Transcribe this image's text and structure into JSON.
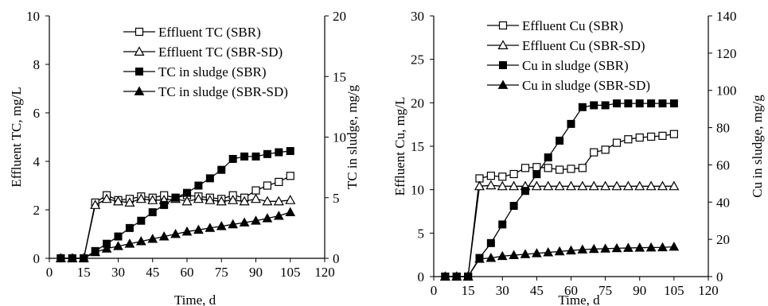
{
  "chart_data": [
    {
      "type": "line",
      "xlabel": "Time, d",
      "ylabel": "Effluent TC, mg/L",
      "y2label": "TC in sludge, mg/g",
      "xlim": [
        0,
        120
      ],
      "ylim": [
        0,
        10
      ],
      "y2lim": [
        0,
        20
      ],
      "xticks": [
        0,
        15,
        30,
        45,
        60,
        75,
        90,
        105,
        120
      ],
      "yticks": [
        0,
        2,
        4,
        6,
        8,
        10
      ],
      "y2ticks": [
        0,
        5,
        10,
        15,
        20
      ],
      "grid": false,
      "legend_position": "top-right",
      "series": [
        {
          "name": "Effluent TC (SBR)",
          "axis": "left",
          "marker": "open-square",
          "x": [
            5,
            10,
            15,
            20,
            25,
            30,
            35,
            40,
            45,
            50,
            55,
            60,
            65,
            70,
            75,
            80,
            85,
            90,
            95,
            100,
            105
          ],
          "y": [
            0,
            0,
            0,
            2.3,
            2.6,
            2.4,
            2.45,
            2.55,
            2.5,
            2.6,
            2.5,
            2.6,
            2.55,
            2.5,
            2.45,
            2.6,
            2.5,
            2.8,
            3.0,
            3.15,
            3.4
          ]
        },
        {
          "name": "Effluent TC (SBR-SD)",
          "axis": "left",
          "marker": "open-triangle",
          "x": [
            5,
            10,
            15,
            20,
            25,
            30,
            35,
            40,
            45,
            50,
            55,
            60,
            65,
            70,
            75,
            80,
            85,
            90,
            95,
            100,
            105
          ],
          "y": [
            0,
            0,
            0,
            2.2,
            2.45,
            2.35,
            2.3,
            2.45,
            2.4,
            2.4,
            2.45,
            2.35,
            2.45,
            2.4,
            2.35,
            2.4,
            2.35,
            2.45,
            2.35,
            2.35,
            2.4
          ]
        },
        {
          "name": "TC in sludge (SBR)",
          "axis": "right",
          "marker": "filled-square",
          "x": [
            5,
            10,
            15,
            20,
            25,
            30,
            35,
            40,
            45,
            50,
            55,
            60,
            65,
            70,
            75,
            80,
            85,
            90,
            95,
            100,
            105
          ],
          "y": [
            0,
            0,
            0,
            0.6,
            1.2,
            1.8,
            2.5,
            3.1,
            3.8,
            4.4,
            5.0,
            5.4,
            6.0,
            6.6,
            7.3,
            8.2,
            8.4,
            8.4,
            8.6,
            8.75,
            8.85
          ]
        },
        {
          "name": "TC in sludge (SBR-SD)",
          "axis": "right",
          "marker": "filled-triangle",
          "x": [
            5,
            10,
            15,
            20,
            25,
            30,
            35,
            40,
            45,
            50,
            55,
            60,
            65,
            70,
            75,
            80,
            85,
            90,
            95,
            100,
            105
          ],
          "y": [
            0,
            0,
            0,
            0.5,
            0.8,
            1.0,
            1.2,
            1.4,
            1.6,
            1.8,
            2.0,
            2.2,
            2.35,
            2.5,
            2.65,
            2.8,
            2.95,
            3.1,
            3.3,
            3.5,
            3.8
          ]
        }
      ]
    },
    {
      "type": "line",
      "xlabel": "Time, d",
      "ylabel": "Effluent Cu, mg/L",
      "y2label": "Cu in sludge, mg/g",
      "xlim": [
        0,
        120
      ],
      "ylim": [
        0,
        30
      ],
      "y2lim": [
        0,
        140
      ],
      "xticks": [
        0,
        15,
        30,
        45,
        60,
        75,
        90,
        105,
        120
      ],
      "yticks": [
        0,
        5,
        10,
        15,
        20,
        25,
        30
      ],
      "y2ticks": [
        0,
        20,
        40,
        60,
        80,
        100,
        120,
        140
      ],
      "grid": false,
      "legend_position": "top-right",
      "series": [
        {
          "name": "Effluent Cu (SBR)",
          "axis": "left",
          "marker": "open-square",
          "x": [
            5,
            10,
            15,
            20,
            25,
            30,
            35,
            40,
            45,
            50,
            55,
            60,
            65,
            70,
            75,
            80,
            85,
            90,
            95,
            100,
            105
          ],
          "y": [
            0,
            0,
            0,
            11.3,
            11.6,
            11.5,
            11.8,
            12.5,
            12.6,
            12.5,
            12.3,
            12.4,
            12.5,
            14.3,
            14.6,
            15.4,
            15.8,
            16.0,
            16.1,
            16.2,
            16.4
          ]
        },
        {
          "name": "Effluent Cu (SBR-SD)",
          "axis": "left",
          "marker": "open-triangle",
          "x": [
            5,
            10,
            15,
            20,
            25,
            30,
            35,
            40,
            45,
            50,
            55,
            60,
            65,
            70,
            75,
            80,
            85,
            90,
            95,
            100,
            105
          ],
          "y": [
            0,
            0,
            0,
            10.4,
            10.5,
            10.4,
            10.4,
            10.4,
            10.4,
            10.4,
            10.4,
            10.4,
            10.4,
            10.4,
            10.4,
            10.4,
            10.4,
            10.4,
            10.4,
            10.4,
            10.4
          ]
        },
        {
          "name": "Cu in sludge (SBR)",
          "axis": "right",
          "marker": "filled-square",
          "x": [
            5,
            10,
            15,
            20,
            25,
            30,
            35,
            40,
            45,
            50,
            55,
            60,
            65,
            70,
            75,
            80,
            85,
            90,
            95,
            100,
            105
          ],
          "y": [
            0,
            0,
            0,
            10,
            18,
            28,
            38,
            46,
            55,
            64,
            73,
            82,
            91,
            92,
            92,
            93,
            93,
            93,
            93,
            93,
            93
          ]
        },
        {
          "name": "Cu in sludge  (SBR-SD)",
          "axis": "right",
          "marker": "filled-triangle",
          "x": [
            5,
            10,
            15,
            20,
            25,
            30,
            35,
            40,
            45,
            50,
            55,
            60,
            65,
            70,
            75,
            80,
            85,
            90,
            95,
            100,
            105
          ],
          "y": [
            0,
            0,
            0,
            9.5,
            10,
            11,
            11.5,
            12,
            12.5,
            13,
            13.5,
            14,
            14.5,
            14.8,
            15,
            15.2,
            15.4,
            15.5,
            15.6,
            15.7,
            16
          ]
        }
      ]
    }
  ]
}
